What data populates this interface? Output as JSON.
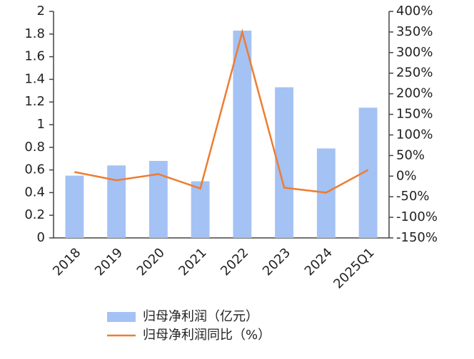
{
  "chart_data": {
    "type": "bar-line",
    "categories": [
      "2018",
      "2019",
      "2020",
      "2021",
      "2022",
      "2023",
      "2024",
      "2025Q1"
    ],
    "series": [
      {
        "name": "归母净利润（亿元）",
        "type": "bar",
        "color": "#a4c2f4",
        "values": [
          0.55,
          0.64,
          0.68,
          0.5,
          1.83,
          1.33,
          0.79,
          1.15
        ]
      },
      {
        "name": "归母净利润同比（%）",
        "type": "line",
        "axis": "y2",
        "color": "#ed7d31",
        "values": [
          10,
          -10,
          5,
          -30,
          350,
          -28,
          -40,
          15
        ]
      }
    ],
    "ylim": [
      0,
      2
    ],
    "yticks": [
      0,
      0.2,
      0.4,
      0.6,
      0.8,
      1,
      1.2,
      1.4,
      1.6,
      1.8,
      2
    ],
    "y2lim": [
      -150,
      400
    ],
    "y2ticks": [
      {
        "value": -150,
        "label": "-150%"
      },
      {
        "value": -100,
        "label": "-100%"
      },
      {
        "value": -50,
        "label": "-50%"
      },
      {
        "value": 0,
        "label": "0%"
      },
      {
        "value": 50,
        "label": "50%"
      },
      {
        "value": 100,
        "label": "100%"
      },
      {
        "value": 150,
        "label": "150%"
      },
      {
        "value": 200,
        "label": "200%"
      },
      {
        "value": 250,
        "label": "250%"
      },
      {
        "value": 300,
        "label": "300%"
      },
      {
        "value": 350,
        "label": "350%"
      },
      {
        "value": 400,
        "label": "400%"
      }
    ]
  }
}
